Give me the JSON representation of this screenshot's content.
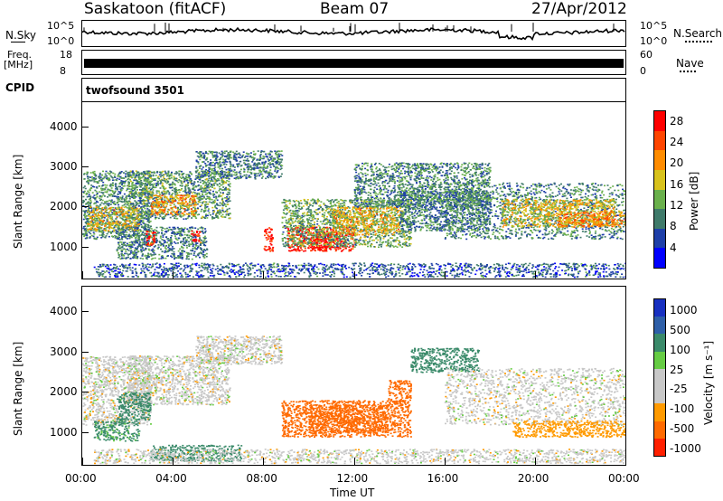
{
  "header": {
    "station": "Saskatoon (fitACF)",
    "beam": "Beam 07",
    "date": "27/Apr/2012"
  },
  "noise_panel": {
    "left_label": "N.Sky",
    "left_ticks": [
      "10^5",
      "10^0"
    ],
    "right_label": "N.Search",
    "right_ticks": [
      "10^5",
      "10^0"
    ]
  },
  "freq_panel": {
    "left_label_1": "Freq.",
    "left_label_2": "[MHz]",
    "left_ticks": [
      "18",
      "8"
    ],
    "right_label": "Nave",
    "right_ticks": [
      "60",
      "0"
    ]
  },
  "cpid_panel": {
    "label": "CPID",
    "value": "twofsound 3501"
  },
  "colors": {
    "power_scale": [
      "#0000ff",
      "#1e3fa8",
      "#3f7a6a",
      "#6ab04c",
      "#d8c21c",
      "#ff8c00",
      "#ff4500",
      "#ff0000"
    ],
    "velocity_scale": [
      "#1830c0",
      "#2e5fa8",
      "#3a8a6a",
      "#66cc44",
      "#c8c8c8",
      "#c8c8c8",
      "#ff9a00",
      "#ff6a00",
      "#ff2000"
    ]
  },
  "chart_data": [
    {
      "type": "heatmap",
      "name": "Power",
      "xlabel": "",
      "ylabel": "Slant Range [km]",
      "xlim": [
        0,
        24
      ],
      "ylim": [
        200,
        4600
      ],
      "yticks": [
        "1000",
        "2000",
        "3000",
        "4000"
      ],
      "xticks": [
        "00:00",
        "04:00",
        "08:00",
        "12:00",
        "16:00",
        "20:00",
        "00:00"
      ],
      "colorbar": {
        "label": "Power [dB]",
        "ticks": [
          "4",
          "8",
          "12",
          "16",
          "20",
          "24",
          "28"
        ],
        "range": [
          0,
          30
        ]
      },
      "regions": [
        {
          "t0": 0.0,
          "t1": 3.0,
          "r0": 1200,
          "r1": 2900,
          "value": 10
        },
        {
          "t0": 0.2,
          "t1": 2.5,
          "r0": 1400,
          "r1": 2000,
          "value": 18
        },
        {
          "t0": 2.0,
          "t1": 6.5,
          "r0": 1700,
          "r1": 2900,
          "value": 11
        },
        {
          "t0": 3.0,
          "t1": 5.0,
          "r0": 1800,
          "r1": 2300,
          "value": 20
        },
        {
          "t0": 5.0,
          "t1": 8.8,
          "r0": 2700,
          "r1": 3400,
          "value": 9
        },
        {
          "t0": 1.5,
          "t1": 5.5,
          "r0": 700,
          "r1": 1500,
          "value": 9
        },
        {
          "t0": 2.8,
          "t1": 3.2,
          "r0": 1000,
          "r1": 1400,
          "value": 26
        },
        {
          "t0": 4.8,
          "t1": 5.2,
          "r0": 1100,
          "r1": 1400,
          "value": 27
        },
        {
          "t0": 8.0,
          "t1": 8.4,
          "r0": 900,
          "r1": 1500,
          "value": 28
        },
        {
          "t0": 9.0,
          "t1": 12.0,
          "r0": 900,
          "r1": 1500,
          "value": 27
        },
        {
          "t0": 10.0,
          "t1": 11.0,
          "r0": 900,
          "r1": 1400,
          "value": 30
        },
        {
          "t0": 8.8,
          "t1": 14.5,
          "r0": 1000,
          "r1": 2200,
          "value": 12
        },
        {
          "t0": 11.0,
          "t1": 14.0,
          "r0": 1300,
          "r1": 2000,
          "value": 18
        },
        {
          "t0": 12.0,
          "t1": 18.0,
          "r0": 2000,
          "r1": 3100,
          "value": 10
        },
        {
          "t0": 14.0,
          "t1": 18.0,
          "r0": 1400,
          "r1": 2400,
          "value": 9
        },
        {
          "t0": 16.0,
          "t1": 24.0,
          "r0": 1200,
          "r1": 2600,
          "value": 10
        },
        {
          "t0": 18.5,
          "t1": 23.5,
          "r0": 1500,
          "r1": 2200,
          "value": 17
        },
        {
          "t0": 21.0,
          "t1": 24.0,
          "r0": 1500,
          "r1": 1900,
          "value": 21
        },
        {
          "t0": 0.5,
          "t1": 24.0,
          "r0": 250,
          "r1": 600,
          "value": 7
        }
      ]
    },
    {
      "type": "heatmap",
      "name": "Velocity",
      "xlabel": "Time UT",
      "ylabel": "Slant Range [km]",
      "xlim": [
        0,
        24
      ],
      "ylim": [
        200,
        4600
      ],
      "yticks": [
        "1000",
        "2000",
        "3000",
        "4000"
      ],
      "xticks": [
        "00:00",
        "04:00",
        "08:00",
        "12:00",
        "16:00",
        "20:00",
        "00:00"
      ],
      "colorbar": {
        "label": "Velocity [m s⁻¹]",
        "ticks": [
          "1000",
          "500",
          "100",
          "25",
          "-25",
          "-100",
          "-500",
          "-1000"
        ],
        "range": [
          -1000,
          1000
        ]
      },
      "regions": [
        {
          "t0": 0.0,
          "t1": 3.0,
          "r0": 1200,
          "r1": 2900,
          "value": 0
        },
        {
          "t0": 2.0,
          "t1": 6.5,
          "r0": 1700,
          "r1": 2900,
          "value": 0
        },
        {
          "t0": 5.0,
          "t1": 8.8,
          "r0": 2700,
          "r1": 3400,
          "value": 0
        },
        {
          "t0": 1.5,
          "t1": 3.0,
          "r0": 1300,
          "r1": 2000,
          "value": 300
        },
        {
          "t0": 0.5,
          "t1": 2.5,
          "r0": 800,
          "r1": 1300,
          "value": 120
        },
        {
          "t0": 3.0,
          "t1": 7.0,
          "r0": 300,
          "r1": 700,
          "value": 150
        },
        {
          "t0": 8.8,
          "t1": 14.5,
          "r0": 900,
          "r1": 1800,
          "value": -300
        },
        {
          "t0": 10.0,
          "t1": 13.5,
          "r0": 1000,
          "r1": 1700,
          "value": -450
        },
        {
          "t0": 13.5,
          "t1": 14.5,
          "r0": 1700,
          "r1": 2300,
          "value": -300
        },
        {
          "t0": 14.5,
          "t1": 17.5,
          "r0": 2500,
          "r1": 3100,
          "value": 400
        },
        {
          "t0": 16.0,
          "t1": 24.0,
          "r0": 1200,
          "r1": 2600,
          "value": 0
        },
        {
          "t0": 19.0,
          "t1": 24.0,
          "r0": 900,
          "r1": 1300,
          "value": -60
        },
        {
          "t0": 0.5,
          "t1": 24.0,
          "r0": 250,
          "r1": 600,
          "value": 0
        }
      ]
    }
  ]
}
